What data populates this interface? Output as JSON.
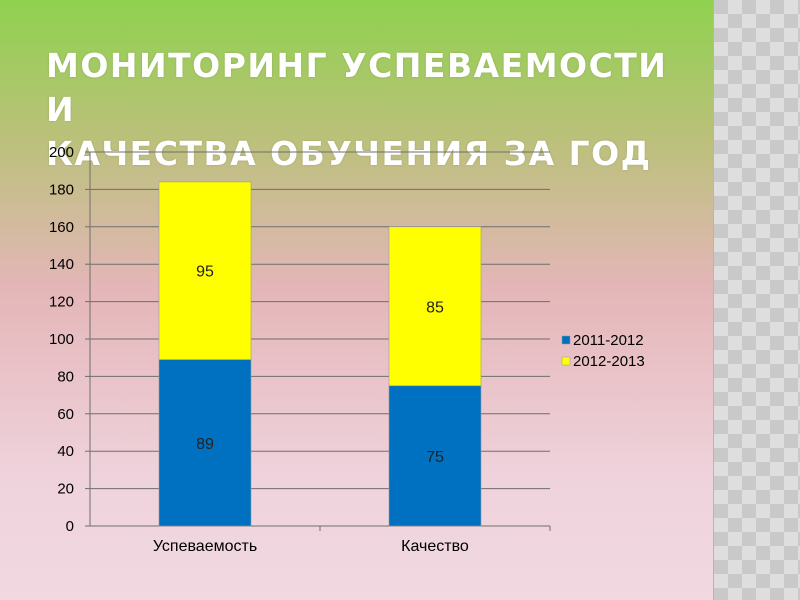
{
  "title_line1": "МОНИТОРИНГ УСПЕВАЕМОСТИ И",
  "title_line2": "КАЧЕСТВА ОБУЧЕНИЯ ЗА ГОД",
  "colors": {
    "series_2011_2012": "#0070c0",
    "series_2012_2013": "#ffff00",
    "title": "#ffffff"
  },
  "chart_data": {
    "type": "bar",
    "stacked": true,
    "categories": [
      "Успеваемость",
      "Качество"
    ],
    "series": [
      {
        "name": "2011-2012",
        "values": [
          89,
          75
        ]
      },
      {
        "name": "2012-2013",
        "values": [
          95,
          85
        ]
      }
    ],
    "ylim": [
      0,
      200
    ],
    "yticks": [
      0,
      20,
      40,
      60,
      80,
      100,
      120,
      140,
      160,
      180,
      200
    ],
    "grid": true,
    "legend_position": "right"
  }
}
